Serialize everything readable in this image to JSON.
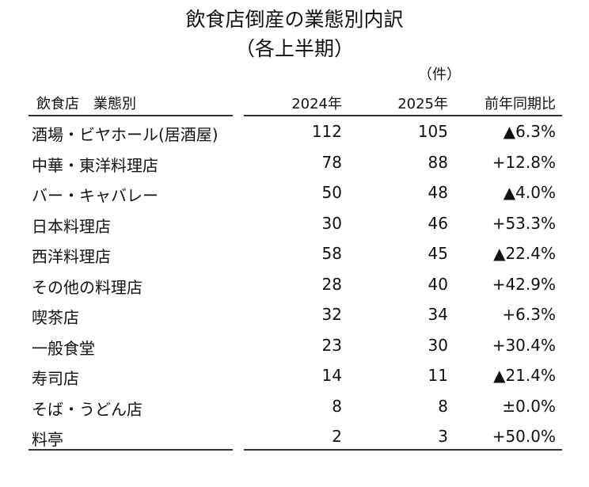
{
  "title_line1": "飲食店倒産の業態別内訳",
  "title_line2": "（各上半期）",
  "unit_label": "（件）",
  "chart_data": {
    "type": "table",
    "columns": [
      "飲食店　業態別",
      "2024年",
      "2025年",
      "前年同期比"
    ],
    "rows": [
      {
        "category": "酒場・ビヤホール(居酒屋)",
        "y2024": "112",
        "y2025": "105",
        "yoy": "▲6.3%"
      },
      {
        "category": "中華・東洋料理店",
        "y2024": "78",
        "y2025": "88",
        "yoy": "+12.8%"
      },
      {
        "category": "バー・キャバレー",
        "y2024": "50",
        "y2025": "48",
        "yoy": "▲4.0%"
      },
      {
        "category": "日本料理店",
        "y2024": "30",
        "y2025": "46",
        "yoy": "+53.3%"
      },
      {
        "category": "西洋料理店",
        "y2024": "58",
        "y2025": "45",
        "yoy": "▲22.4%"
      },
      {
        "category": "その他の料理店",
        "y2024": "28",
        "y2025": "40",
        "yoy": "+42.9%"
      },
      {
        "category": "喫茶店",
        "y2024": "32",
        "y2025": "34",
        "yoy": "+6.3%"
      },
      {
        "category": "一般食堂",
        "y2024": "23",
        "y2025": "30",
        "yoy": "+30.4%"
      },
      {
        "category": "寿司店",
        "y2024": "14",
        "y2025": "11",
        "yoy": "▲21.4%"
      },
      {
        "category": "そば・うどん店",
        "y2024": "8",
        "y2025": "8",
        "yoy": "±0.0%"
      },
      {
        "category": "料亭",
        "y2024": "2",
        "y2025": "3",
        "yoy": "+50.0%"
      }
    ]
  }
}
